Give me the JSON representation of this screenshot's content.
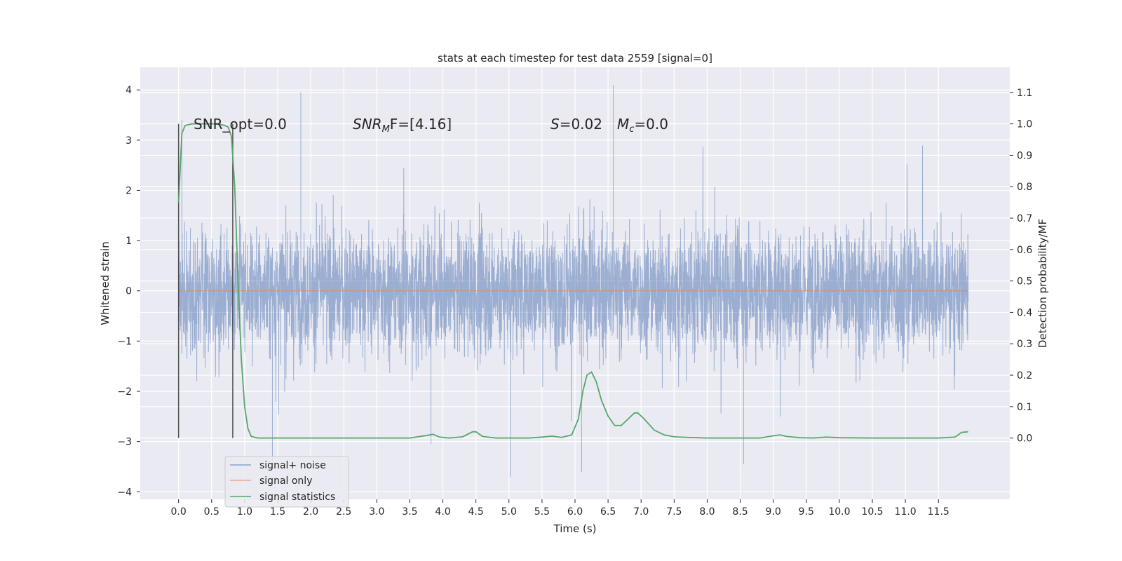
{
  "chart_data": {
    "type": "line",
    "title": "stats at each timestep for test data 2559 [signal=0]",
    "xlabel": "Time (s)",
    "ylabel": "Whitened strain",
    "ylabel_right": "Detection probability/MF",
    "xlim": [
      -0.58,
      12.58
    ],
    "ylim": [
      -4.15,
      4.45
    ],
    "ylim_right": [
      -0.195,
      1.18
    ],
    "x_ticks": [
      "0.0",
      "0.5",
      "1.0",
      "1.5",
      "2.0",
      "2.5",
      "3.0",
      "3.5",
      "4.0",
      "4.5",
      "5.0",
      "5.5",
      "6.0",
      "6.5",
      "7.0",
      "7.5",
      "8.0",
      "8.5",
      "9.0",
      "9.5",
      "10.0",
      "10.5",
      "11.0",
      "11.5"
    ],
    "y_ticks_left": [
      "−4",
      "−3",
      "−2",
      "−1",
      "0",
      "1",
      "2",
      "3",
      "4"
    ],
    "y_ticks_right": [
      "0.0",
      "0.1",
      "0.2",
      "0.3",
      "0.4",
      "0.5",
      "0.6",
      "0.7",
      "0.8",
      "0.9",
      "1.0",
      "1.1"
    ],
    "grid": true,
    "legend_position": "lower-left",
    "annotations": {
      "snr_opt": "SNR_opt=0.0",
      "snr_mf_base": "SNR",
      "snr_mf_sub": "M",
      "snr_mf_tail": "F=[4.16]",
      "s_label": "S",
      "s_value": "=0.02",
      "mc_base": "M",
      "mc_sub": "c",
      "mc_value": "=0.0"
    },
    "x_range": [
      0.0,
      11.95
    ],
    "series": [
      {
        "name": "signal+ noise",
        "color": "#4c72b0",
        "axis": "left",
        "envelope_typical": [
          -1.8,
          2.0
        ],
        "spikes": [
          {
            "x": 0.05,
            "y": 3.4
          },
          {
            "x": 1.42,
            "y": -3.4
          },
          {
            "x": 1.85,
            "y": 3.95
          },
          {
            "x": 3.82,
            "y": -3.05
          },
          {
            "x": 5.02,
            "y": -3.7
          },
          {
            "x": 6.1,
            "y": -3.6
          },
          {
            "x": 6.58,
            "y": 4.1
          },
          {
            "x": 8.55,
            "y": -3.45
          }
        ]
      },
      {
        "name": "signal only",
        "color": "#dd8452",
        "axis": "left",
        "x": [
          0.0,
          11.95
        ],
        "y": [
          0.0,
          0.0
        ]
      },
      {
        "name": "signal statistics",
        "color": "#55a868",
        "axis": "right",
        "x": [
          0.0,
          0.05,
          0.1,
          0.2,
          0.4,
          0.6,
          0.7,
          0.75,
          0.8,
          0.85,
          0.9,
          0.95,
          1.0,
          1.05,
          1.1,
          1.2,
          1.5,
          2.0,
          2.5,
          3.0,
          3.5,
          3.75,
          3.85,
          3.95,
          4.1,
          4.3,
          4.45,
          4.5,
          4.6,
          4.8,
          5.0,
          5.3,
          5.5,
          5.65,
          5.8,
          5.95,
          6.05,
          6.12,
          6.18,
          6.25,
          6.32,
          6.4,
          6.5,
          6.6,
          6.7,
          6.8,
          6.9,
          6.95,
          7.05,
          7.2,
          7.35,
          7.5,
          7.7,
          8.0,
          8.5,
          8.8,
          9.0,
          9.1,
          9.2,
          9.4,
          9.6,
          9.8,
          10.0,
          10.5,
          11.0,
          11.5,
          11.75,
          11.85,
          11.95
        ],
        "y": [
          0.75,
          0.97,
          0.995,
          1.0,
          1.0,
          1.0,
          0.995,
          0.99,
          0.96,
          0.8,
          0.5,
          0.25,
          0.1,
          0.03,
          0.005,
          0.0,
          0.0,
          0.0,
          0.0,
          0.0,
          0.0,
          0.008,
          0.012,
          0.003,
          0.0,
          0.004,
          0.02,
          0.02,
          0.005,
          0.0,
          0.0,
          0.0,
          0.003,
          0.006,
          0.002,
          0.01,
          0.06,
          0.15,
          0.2,
          0.21,
          0.18,
          0.12,
          0.07,
          0.04,
          0.04,
          0.06,
          0.08,
          0.08,
          0.06,
          0.025,
          0.01,
          0.004,
          0.002,
          0.0,
          0.0,
          0.0,
          0.007,
          0.01,
          0.005,
          0.001,
          0.0,
          0.003,
          0.001,
          0.0,
          0.0,
          0.0,
          0.003,
          0.018,
          0.02
        ]
      }
    ],
    "vertical_markers": [
      0.0,
      0.82
    ]
  }
}
